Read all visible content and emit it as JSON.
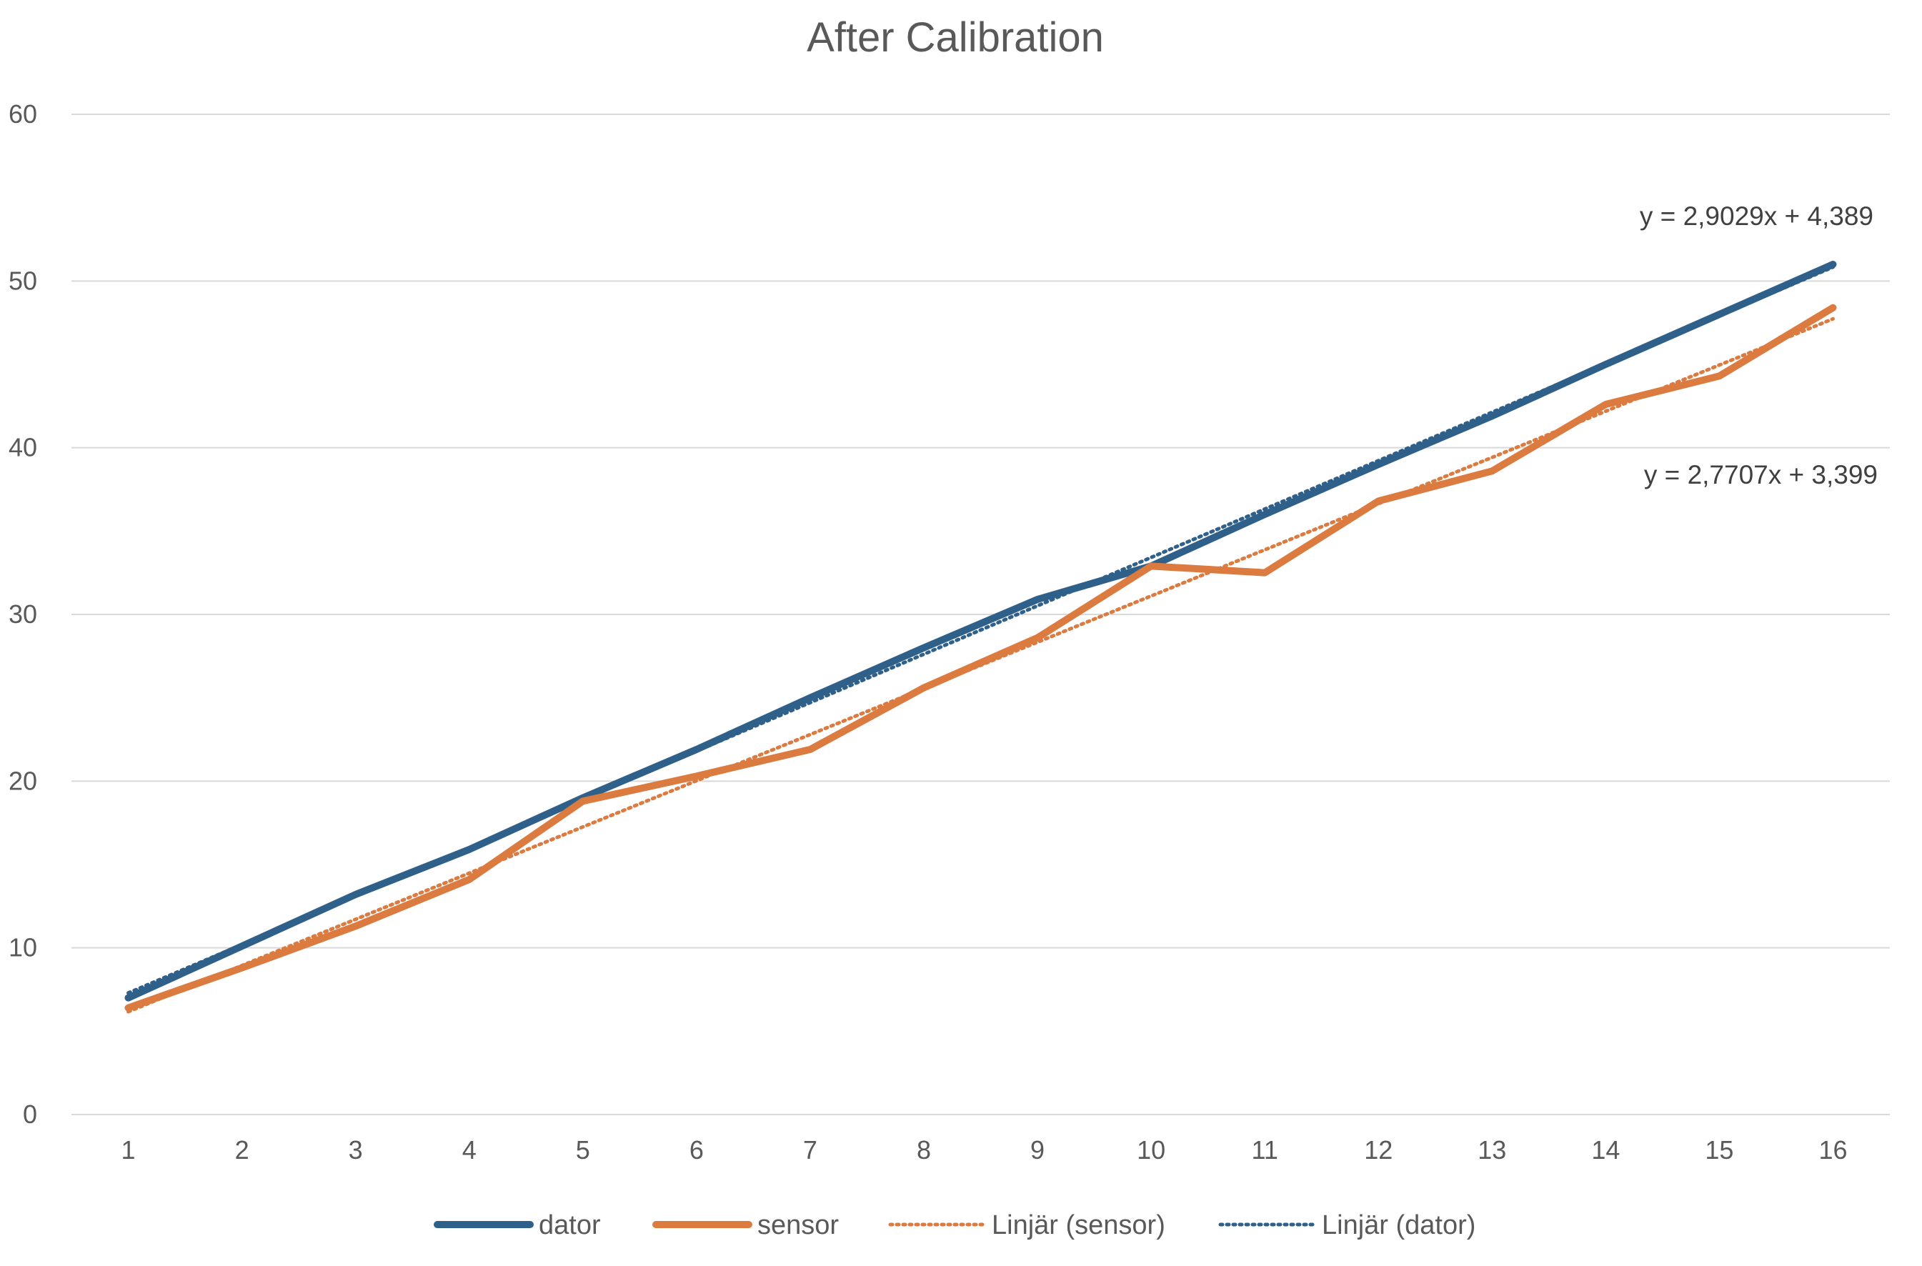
{
  "chart_data": {
    "type": "line",
    "title": "After Calibration",
    "xlabel": "",
    "ylabel": "",
    "categories": [
      "1",
      "2",
      "3",
      "4",
      "5",
      "6",
      "7",
      "8",
      "9",
      "10",
      "11",
      "12",
      "13",
      "14",
      "15",
      "16"
    ],
    "ylim": [
      0,
      60
    ],
    "yticks": [
      "0",
      "10",
      "20",
      "30",
      "40",
      "50",
      "60"
    ],
    "grid": true,
    "legend_position": "bottom",
    "series": [
      {
        "name": "dator",
        "style": "solid",
        "color": "#2e6089",
        "values": [
          7.0,
          10.1,
          13.2,
          15.9,
          19.0,
          21.9,
          25.0,
          28.0,
          30.9,
          32.9,
          36.0,
          39.0,
          41.9,
          45.0,
          48.0,
          51.0
        ]
      },
      {
        "name": "sensor",
        "style": "solid",
        "color": "#db7b40",
        "values": [
          6.4,
          8.8,
          11.3,
          14.1,
          18.8,
          20.3,
          21.9,
          25.6,
          28.6,
          32.9,
          32.5,
          36.8,
          38.6,
          42.6,
          44.3,
          48.4
        ]
      },
      {
        "name": "Linjär (sensor)",
        "style": "dotted",
        "color": "#db7b40",
        "trendline_of": "sensor",
        "slope": 2.7707,
        "intercept": 3.399,
        "equation": "y = 2,7707x + 3,399"
      },
      {
        "name": "Linjär (dator)",
        "style": "dotted",
        "color": "#2e6089",
        "trendline_of": "dator",
        "slope": 2.9029,
        "intercept": 4.389,
        "equation": "y = 2,9029x + 4,389"
      }
    ]
  }
}
